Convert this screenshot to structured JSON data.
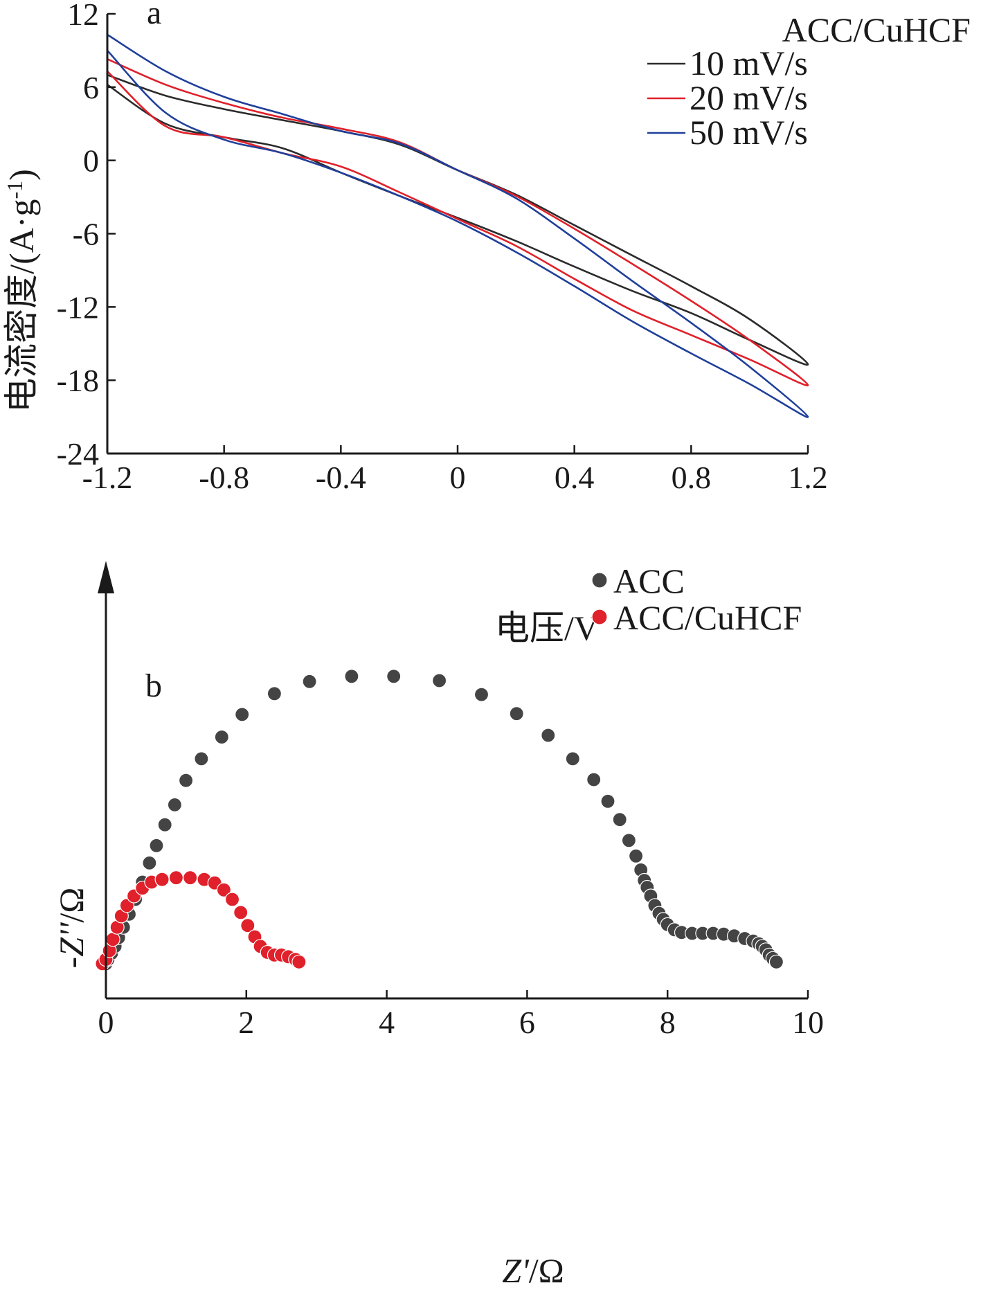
{
  "charts": {
    "cv": {
      "panel_label": "a",
      "type": "line",
      "xlabel": "电压/V",
      "ylabel_main": "电流密度/(A·g",
      "ylabel_sup": "-1",
      "ylabel_close": ")",
      "xlim": [
        -1.2,
        1.2
      ],
      "ylim": [
        -24,
        12
      ],
      "xticks": [
        -1.2,
        -0.8,
        -0.4,
        0,
        0.4,
        0.8,
        1.2
      ],
      "xtick_labels": [
        "-1.2",
        "-0.8",
        "-0.4",
        "0",
        "0.4",
        "0.8",
        "1.2"
      ],
      "yticks": [
        12,
        6,
        0,
        -6,
        -12,
        -18,
        -24
      ],
      "ytick_labels": [
        "12",
        "6",
        "0",
        "-6",
        "-12",
        "-18",
        "-24"
      ],
      "legend_title": "ACC/CuHCF",
      "series": [
        {
          "name": "10 mV/s",
          "color": "#2b2b2b",
          "upper": [
            [
              -1.2,
              7.0
            ],
            [
              -1.0,
              5.3
            ],
            [
              -0.8,
              4.2
            ],
            [
              -0.6,
              3.3
            ],
            [
              -0.4,
              2.4
            ],
            [
              -0.2,
              1.3
            ],
            [
              0.0,
              -0.8
            ],
            [
              0.2,
              -2.8
            ],
            [
              0.4,
              -5.3
            ],
            [
              0.6,
              -7.8
            ],
            [
              0.8,
              -10.3
            ],
            [
              1.0,
              -13.0
            ],
            [
              1.2,
              -16.7
            ]
          ],
          "lower": [
            [
              -1.2,
              6.2
            ],
            [
              -1.0,
              3.0
            ],
            [
              -0.8,
              1.9
            ],
            [
              -0.6,
              1.0
            ],
            [
              -0.4,
              -1.0
            ],
            [
              -0.2,
              -2.9
            ],
            [
              0.0,
              -4.7
            ],
            [
              0.2,
              -6.6
            ],
            [
              0.4,
              -8.7
            ],
            [
              0.6,
              -10.7
            ],
            [
              0.8,
              -12.5
            ],
            [
              1.0,
              -14.7
            ],
            [
              1.2,
              -16.7
            ]
          ]
        },
        {
          "name": "20 mV/s",
          "color": "#e0202a",
          "upper": [
            [
              -1.2,
              8.3
            ],
            [
              -1.0,
              6.2
            ],
            [
              -0.8,
              4.7
            ],
            [
              -0.6,
              3.5
            ],
            [
              -0.4,
              2.6
            ],
            [
              -0.2,
              1.5
            ],
            [
              0.0,
              -0.8
            ],
            [
              0.2,
              -2.9
            ],
            [
              0.4,
              -5.6
            ],
            [
              0.6,
              -8.5
            ],
            [
              0.8,
              -11.5
            ],
            [
              1.0,
              -14.7
            ],
            [
              1.2,
              -18.4
            ]
          ],
          "lower": [
            [
              -1.2,
              7.3
            ],
            [
              -1.0,
              2.8
            ],
            [
              -0.8,
              1.9
            ],
            [
              -0.6,
              0.6
            ],
            [
              -0.4,
              -0.5
            ],
            [
              -0.2,
              -2.6
            ],
            [
              0.0,
              -4.8
            ],
            [
              0.2,
              -7.0
            ],
            [
              0.4,
              -9.7
            ],
            [
              0.6,
              -12.3
            ],
            [
              0.8,
              -14.3
            ],
            [
              1.0,
              -16.3
            ],
            [
              1.2,
              -18.4
            ]
          ]
        },
        {
          "name": "50 mV/s",
          "color": "#1f3f9a",
          "upper": [
            [
              -1.2,
              10.3
            ],
            [
              -1.0,
              7.3
            ],
            [
              -0.8,
              5.2
            ],
            [
              -0.6,
              3.8
            ],
            [
              -0.4,
              2.4
            ],
            [
              -0.2,
              1.4
            ],
            [
              0.0,
              -0.8
            ],
            [
              0.2,
              -3.1
            ],
            [
              0.4,
              -6.4
            ],
            [
              0.6,
              -9.9
            ],
            [
              0.8,
              -13.3
            ],
            [
              1.0,
              -16.9
            ],
            [
              1.2,
              -21.0
            ]
          ],
          "lower": [
            [
              -1.2,
              9.0
            ],
            [
              -1.0,
              3.9
            ],
            [
              -0.8,
              1.7
            ],
            [
              -0.6,
              0.6
            ],
            [
              -0.4,
              -1.0
            ],
            [
              -0.2,
              -2.9
            ],
            [
              0.0,
              -5.0
            ],
            [
              0.2,
              -7.5
            ],
            [
              0.4,
              -10.3
            ],
            [
              0.6,
              -13.2
            ],
            [
              0.8,
              -15.8
            ],
            [
              1.0,
              -18.3
            ],
            [
              1.2,
              -21.0
            ]
          ]
        }
      ]
    },
    "eis": {
      "panel_label": "b",
      "type": "scatter",
      "xlabel_var": "Z'",
      "xlabel_unit": "/Ω",
      "ylabel_var": "-Z''",
      "ylabel_unit": "/Ω",
      "xlim": [
        0,
        10
      ],
      "ylim": [
        0,
        5
      ],
      "xticks": [
        0,
        2,
        4,
        6,
        8,
        10
      ],
      "xtick_labels": [
        "0",
        "2",
        "4",
        "6",
        "8",
        "10"
      ],
      "series": [
        {
          "name": "ACC",
          "color": "#444444",
          "marker_radius": 10,
          "points": [
            [
              0.0,
              0.4
            ],
            [
              0.03,
              0.45
            ],
            [
              0.08,
              0.52
            ],
            [
              0.13,
              0.6
            ],
            [
              0.18,
              0.7
            ],
            [
              0.25,
              0.82
            ],
            [
              0.33,
              0.97
            ],
            [
              0.42,
              1.14
            ],
            [
              0.52,
              1.34
            ],
            [
              0.62,
              1.56
            ],
            [
              0.72,
              1.76
            ],
            [
              0.84,
              2.0
            ],
            [
              0.98,
              2.23
            ],
            [
              1.14,
              2.51
            ],
            [
              1.36,
              2.76
            ],
            [
              1.65,
              3.01
            ],
            [
              1.94,
              3.27
            ],
            [
              2.4,
              3.51
            ],
            [
              2.9,
              3.65
            ],
            [
              3.5,
              3.71
            ],
            [
              4.1,
              3.71
            ],
            [
              4.75,
              3.66
            ],
            [
              5.35,
              3.5
            ],
            [
              5.85,
              3.28
            ],
            [
              6.3,
              3.03
            ],
            [
              6.65,
              2.76
            ],
            [
              6.95,
              2.52
            ],
            [
              7.15,
              2.27
            ],
            [
              7.32,
              2.06
            ],
            [
              7.45,
              1.82
            ],
            [
              7.55,
              1.64
            ],
            [
              7.62,
              1.48
            ],
            [
              7.67,
              1.36
            ],
            [
              7.71,
              1.28
            ],
            [
              7.76,
              1.18
            ],
            [
              7.82,
              1.07
            ],
            [
              7.88,
              0.98
            ],
            [
              7.94,
              0.91
            ],
            [
              8.0,
              0.85
            ],
            [
              8.1,
              0.79
            ],
            [
              8.2,
              0.76
            ],
            [
              8.35,
              0.75
            ],
            [
              8.5,
              0.75
            ],
            [
              8.65,
              0.75
            ],
            [
              8.8,
              0.74
            ],
            [
              8.95,
              0.72
            ],
            [
              9.1,
              0.69
            ],
            [
              9.22,
              0.66
            ],
            [
              9.3,
              0.63
            ],
            [
              9.35,
              0.6
            ],
            [
              9.4,
              0.56
            ],
            [
              9.45,
              0.5
            ],
            [
              9.5,
              0.46
            ],
            [
              9.55,
              0.42
            ]
          ]
        },
        {
          "name": "ACC/CuHCF",
          "color": "#e0202a",
          "marker_radius": 10,
          "points": [
            [
              -0.05,
              0.4
            ],
            [
              0.0,
              0.45
            ],
            [
              0.05,
              0.55
            ],
            [
              0.1,
              0.68
            ],
            [
              0.16,
              0.82
            ],
            [
              0.22,
              0.95
            ],
            [
              0.3,
              1.07
            ],
            [
              0.4,
              1.18
            ],
            [
              0.52,
              1.27
            ],
            [
              0.65,
              1.34
            ],
            [
              0.8,
              1.37
            ],
            [
              1.0,
              1.39
            ],
            [
              1.2,
              1.39
            ],
            [
              1.4,
              1.37
            ],
            [
              1.55,
              1.33
            ],
            [
              1.68,
              1.25
            ],
            [
              1.8,
              1.14
            ],
            [
              1.92,
              0.99
            ],
            [
              2.02,
              0.84
            ],
            [
              2.12,
              0.71
            ],
            [
              2.2,
              0.6
            ],
            [
              2.3,
              0.53
            ],
            [
              2.4,
              0.5
            ],
            [
              2.5,
              0.5
            ],
            [
              2.6,
              0.48
            ],
            [
              2.7,
              0.45
            ],
            [
              2.75,
              0.42
            ]
          ]
        }
      ]
    }
  }
}
